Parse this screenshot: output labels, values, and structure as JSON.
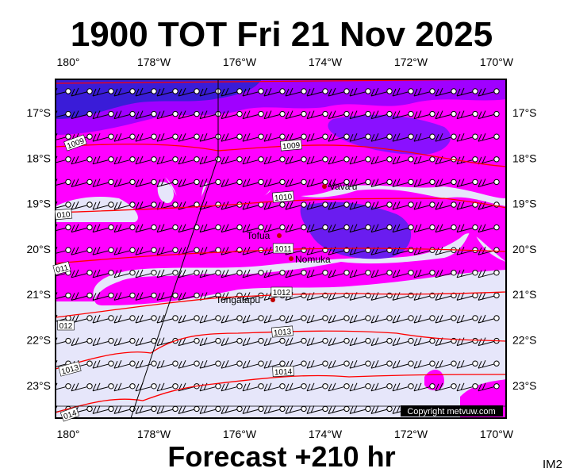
{
  "title": "1900 TOT Fri 21 Nov 2025",
  "footer": "Forecast +210 hr",
  "corner_label": "IM2",
  "copyright": "Copyright metvuw.com",
  "longitude_labels": [
    "180°",
    "178°W",
    "176°W",
    "174°W",
    "172°W",
    "170°W"
  ],
  "latitude_labels": [
    "17°S",
    "18°S",
    "19°S",
    "20°S",
    "21°S",
    "22°S",
    "23°S"
  ],
  "isobar_labels": [
    "1009",
    "1009",
    "1010",
    "010",
    "011",
    "1011",
    "1012",
    "012",
    "1013",
    "1013",
    "1014",
    "014"
  ],
  "places": [
    "Vava'u",
    "Tofua",
    "Nomuka",
    "Tongatapu"
  ]
}
